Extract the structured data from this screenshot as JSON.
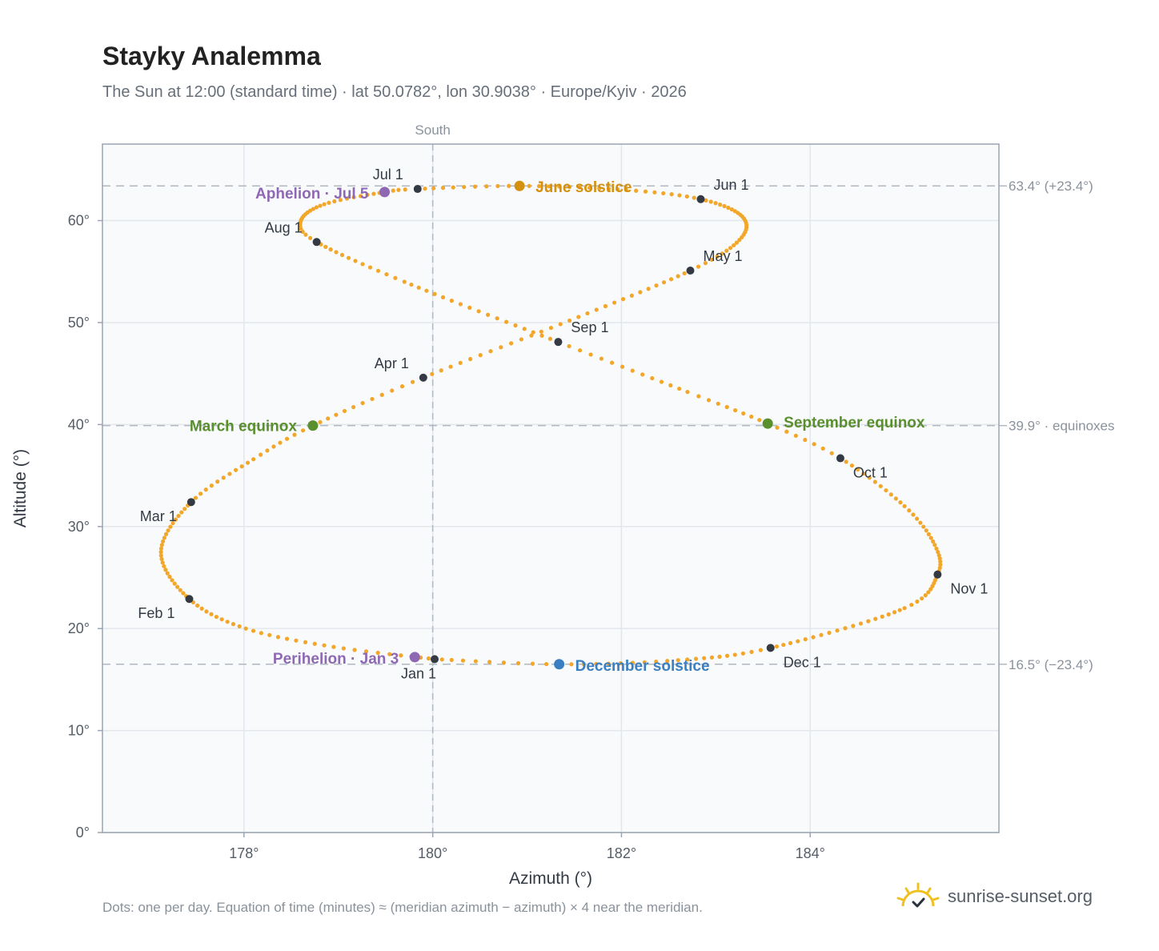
{
  "title": "Stayky Analemma",
  "subtitle": "The Sun at 12:00 (standard time) · lat 50.0782°, lon 30.9038° · Europe/Kyiv · 2026",
  "footnote": "Dots: one per day. Equation of time (minutes) ≈ (meridian azimuth − azimuth) × 4 near the meridian.",
  "brand": {
    "name": "sunrise-sunset.org",
    "icon": "sun-logo-icon"
  },
  "colors": {
    "curve": "#f2a62a",
    "month_marker": "#333a44",
    "equinox": "#5a8f2e",
    "june_solstice": "#d4900f",
    "december_solstice": "#3a7fc1",
    "apsis": "#8e68b2",
    "plot_bg": "#f8fafc",
    "grid": "#e3e7ec",
    "frame": "#9aa4b2",
    "ref_line": "#b0b8c2"
  },
  "chart_data": {
    "type": "scatter",
    "title": "Stayky Analemma",
    "xlabel": "Azimuth (°)",
    "ylabel": "Altitude (°)",
    "xlim": [
      176.5,
      186
    ],
    "ylim": [
      0,
      67.5
    ],
    "xticks": [
      178,
      180,
      182,
      184
    ],
    "xtick_labels": [
      "178°",
      "180°",
      "182°",
      "184°"
    ],
    "yticks": [
      0,
      10,
      20,
      30,
      40,
      50,
      60
    ],
    "ytick_labels": [
      "0°",
      "10°",
      "20°",
      "30°",
      "40°",
      "50°",
      "60°"
    ],
    "grid": true,
    "south_line": {
      "azimuth": 180,
      "label": "South"
    },
    "reference_lines": [
      {
        "altitude": 63.4,
        "label": "63.4° (+23.4°)"
      },
      {
        "altitude": 39.9,
        "label": "39.9° · equinoxes"
      },
      {
        "altitude": 16.5,
        "label": "16.5° (−23.4°)"
      }
    ],
    "month_markers": [
      {
        "label": "Jan 1",
        "azimuth": 180.02,
        "altitude": 17.0
      },
      {
        "label": "Feb 1",
        "azimuth": 177.42,
        "altitude": 22.9
      },
      {
        "label": "Mar 1",
        "azimuth": 177.44,
        "altitude": 32.4
      },
      {
        "label": "Apr 1",
        "azimuth": 179.9,
        "altitude": 44.6
      },
      {
        "label": "May 1",
        "azimuth": 182.73,
        "altitude": 55.1
      },
      {
        "label": "Jun 1",
        "azimuth": 182.84,
        "altitude": 62.1
      },
      {
        "label": "Jul 1",
        "azimuth": 179.84,
        "altitude": 63.1
      },
      {
        "label": "Aug 1",
        "azimuth": 178.77,
        "altitude": 57.9
      },
      {
        "label": "Sep 1",
        "azimuth": 181.33,
        "altitude": 48.1
      },
      {
        "label": "Oct 1",
        "azimuth": 184.32,
        "altitude": 36.7
      },
      {
        "label": "Nov 1",
        "azimuth": 185.35,
        "altitude": 25.3
      },
      {
        "label": "Dec 1",
        "azimuth": 183.58,
        "altitude": 18.1
      }
    ],
    "key_events": [
      {
        "label": "March equinox",
        "azimuth": 178.73,
        "altitude": 39.9,
        "kind": "equinox"
      },
      {
        "label": "June solstice",
        "azimuth": 180.92,
        "altitude": 63.4,
        "kind": "june_solstice"
      },
      {
        "label": "September equinox",
        "azimuth": 183.55,
        "altitude": 40.1,
        "kind": "equinox"
      },
      {
        "label": "December solstice",
        "azimuth": 181.34,
        "altitude": 16.5,
        "kind": "december_solstice"
      },
      {
        "label": "Aphelion · Jul 5",
        "azimuth": 179.49,
        "altitude": 62.8,
        "kind": "apsis"
      },
      {
        "label": "Perihelion · Jan 3",
        "azimuth": 179.81,
        "altitude": 17.2,
        "kind": "apsis"
      }
    ],
    "curve_anchors": [
      {
        "day": 0,
        "azimuth": 180.02,
        "altitude": 17.0
      },
      {
        "day": 10,
        "azimuth": 178.95,
        "altitude": 18.2
      },
      {
        "day": 20,
        "azimuth": 178.02,
        "altitude": 20.0
      },
      {
        "day": 31,
        "azimuth": 177.42,
        "altitude": 22.9
      },
      {
        "day": 45,
        "azimuth": 177.12,
        "altitude": 27.5
      },
      {
        "day": 59,
        "azimuth": 177.44,
        "altitude": 32.4
      },
      {
        "day": 70,
        "azimuth": 178.1,
        "altitude": 36.6
      },
      {
        "day": 78,
        "azimuth": 178.73,
        "altitude": 39.9
      },
      {
        "day": 90,
        "azimuth": 179.9,
        "altitude": 44.6
      },
      {
        "day": 105,
        "azimuth": 181.45,
        "altitude": 50.2
      },
      {
        "day": 120,
        "azimuth": 182.73,
        "altitude": 55.1
      },
      {
        "day": 130,
        "azimuth": 183.25,
        "altitude": 58.1
      },
      {
        "day": 140,
        "azimuth": 183.28,
        "altitude": 60.4
      },
      {
        "day": 151,
        "azimuth": 182.84,
        "altitude": 62.1
      },
      {
        "day": 160,
        "azimuth": 182.05,
        "altitude": 63.0
      },
      {
        "day": 171,
        "azimuth": 180.92,
        "altitude": 63.4
      },
      {
        "day": 181,
        "azimuth": 179.84,
        "altitude": 63.1
      },
      {
        "day": 185,
        "azimuth": 179.49,
        "altitude": 62.8
      },
      {
        "day": 195,
        "azimuth": 178.85,
        "altitude": 61.6
      },
      {
        "day": 205,
        "azimuth": 178.6,
        "altitude": 59.9
      },
      {
        "day": 212,
        "azimuth": 178.77,
        "altitude": 57.9
      },
      {
        "day": 225,
        "azimuth": 179.7,
        "altitude": 54.0
      },
      {
        "day": 243,
        "azimuth": 181.33,
        "altitude": 48.1
      },
      {
        "day": 256,
        "azimuth": 182.7,
        "altitude": 43.2
      },
      {
        "day": 265,
        "azimuth": 183.55,
        "altitude": 40.1
      },
      {
        "day": 273,
        "azimuth": 184.32,
        "altitude": 36.7
      },
      {
        "day": 285,
        "azimuth": 185.0,
        "altitude": 32.0
      },
      {
        "day": 295,
        "azimuth": 185.32,
        "altitude": 28.2
      },
      {
        "day": 304,
        "azimuth": 185.35,
        "altitude": 25.3
      },
      {
        "day": 315,
        "azimuth": 185.0,
        "altitude": 22.0
      },
      {
        "day": 334,
        "azimuth": 183.58,
        "altitude": 18.1
      },
      {
        "day": 345,
        "azimuth": 182.6,
        "altitude": 16.9
      },
      {
        "day": 355,
        "azimuth": 181.34,
        "altitude": 16.5
      },
      {
        "day": 365,
        "azimuth": 180.02,
        "altitude": 17.0
      }
    ]
  }
}
